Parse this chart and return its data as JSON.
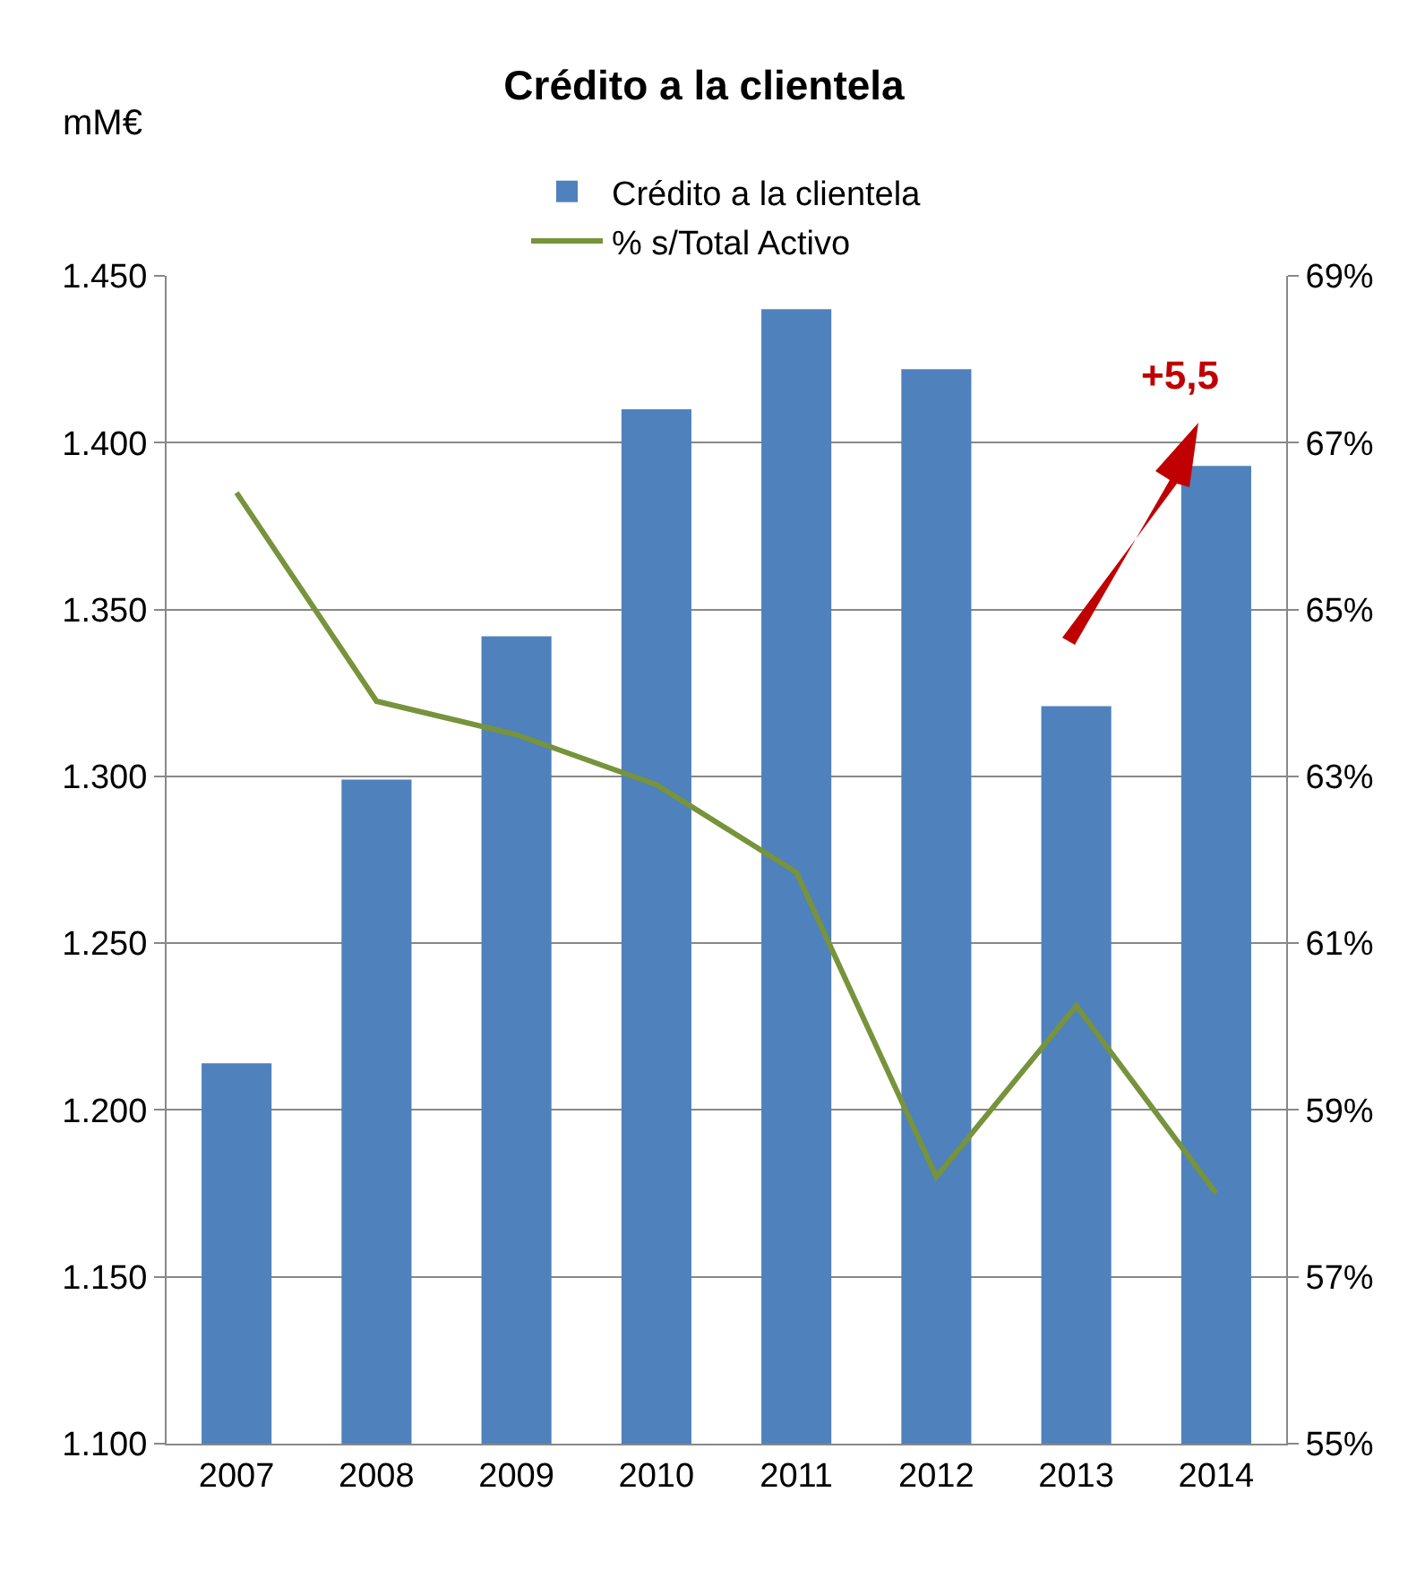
{
  "chart_data": {
    "type": "bar",
    "title": "Crédito a la clientela",
    "ylabel": "mM€",
    "categories": [
      "2007",
      "2008",
      "2009",
      "2010",
      "2011",
      "2012",
      "2013",
      "2014"
    ],
    "series": [
      {
        "name": "Crédito a la clientela",
        "color": "#4f81bd",
        "values": [
          1.214,
          1.299,
          1.342,
          1.41,
          1.44,
          1.422,
          1.321,
          1.393
        ]
      },
      {
        "name": "% s/Total Activo",
        "type": "line",
        "axis": "y2",
        "color": "#77933c",
        "values": [
          66.4,
          63.9,
          63.5,
          62.9,
          61.85,
          58.2,
          60.25,
          58.0
        ]
      }
    ],
    "ylim": [
      1.1,
      1.45
    ],
    "yticks": [
      {
        "value": 1.1,
        "label": "1.100"
      },
      {
        "value": 1.15,
        "label": "1.150"
      },
      {
        "value": 1.2,
        "label": "1.200"
      },
      {
        "value": 1.25,
        "label": "1.250"
      },
      {
        "value": 1.3,
        "label": "1.300"
      },
      {
        "value": 1.35,
        "label": "1.350"
      },
      {
        "value": 1.4,
        "label": "1.400"
      },
      {
        "value": 1.45,
        "label": "1.450"
      }
    ],
    "y2lim": [
      55,
      69
    ],
    "y2ticks": [
      {
        "value": 55,
        "label": "55%"
      },
      {
        "value": 57,
        "label": "57%"
      },
      {
        "value": 59,
        "label": "59%"
      },
      {
        "value": 61,
        "label": "61%"
      },
      {
        "value": 63,
        "label": "63%"
      },
      {
        "value": 65,
        "label": "65%"
      },
      {
        "value": 67,
        "label": "67%"
      },
      {
        "value": 69,
        "label": "69%"
      }
    ],
    "annotations": [
      "+5,5"
    ],
    "grid": "y",
    "legend": "top",
    "marker": "none",
    "line_style": "solid"
  }
}
